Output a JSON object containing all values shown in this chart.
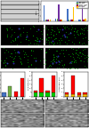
{
  "fig_width": 1.0,
  "fig_height": 1.44,
  "bg_color": "#ffffff",
  "bar_chart_top": {
    "categories": [
      "NTG",
      "CryABR120G",
      "Atg7",
      "CryABR120G\nAtg7"
    ],
    "series": [
      {
        "label": "NTG+Dox",
        "color": "#4472c4",
        "values": [
          2.8,
          0.5,
          2.2,
          0.4
        ]
      },
      {
        "label": "NTG-Dox",
        "color": "#70ad47",
        "values": [
          0.4,
          0.5,
          0.4,
          0.3
        ]
      },
      {
        "label": "R120G+Dox",
        "color": "#7030a0",
        "values": [
          0.3,
          3.0,
          0.3,
          2.8
        ]
      },
      {
        "label": "R120G-Dox",
        "color": "#c00000",
        "values": [
          0.3,
          0.3,
          0.3,
          0.3
        ]
      },
      {
        "label": "Atg7+Dox",
        "color": "#ffc000",
        "values": [
          0.3,
          0.3,
          2.5,
          0.5
        ]
      }
    ],
    "ylabel": "Ratio",
    "ylim": [
      0,
      3.5
    ]
  },
  "bar_chart_g": {
    "categories": [
      "NTG",
      "CryABR120G",
      "Atg7",
      "CryABR120G\nAtg7"
    ],
    "colors": [
      "#4472c4",
      "#70ad47",
      "#ff0000",
      "#ff0000"
    ],
    "values": [
      1.0,
      2.5,
      1.2,
      4.5
    ],
    "ylabel": "GFP dots/cell",
    "ylim": [
      0,
      5
    ]
  },
  "bar_chart_r": {
    "categories": [
      "NTG",
      "CryABR120G",
      "Atg7",
      "CryABR120G\nAtg7"
    ],
    "colors": [
      "#4472c4",
      "#70ad47",
      "#ff0000",
      "#ff0000"
    ],
    "values_green": [
      1.0,
      1.0,
      0.9,
      1.0
    ],
    "values_red": [
      0.5,
      3.5,
      0.5,
      4.2
    ],
    "ylabel": "RFP dots/cell",
    "ylim": [
      0,
      5
    ]
  },
  "bar_chart_flux": {
    "categories": [
      "NTG",
      "CryABR120G",
      "Atg7",
      "CryABR120G\nAtg7"
    ],
    "colors_yellow": [
      "#ffc000",
      "#ffc000",
      "#ffc000",
      "#ffc000"
    ],
    "colors_red": [
      "#ff0000",
      "#ff0000",
      "#ff0000",
      "#ff0000"
    ],
    "values_yellow": [
      0.5,
      0.5,
      0.4,
      0.5
    ],
    "values_red": [
      0.5,
      4.5,
      0.5,
      0.5
    ],
    "ylabel": "Autophagic flux",
    "ylim": [
      0,
      5
    ]
  },
  "fluorescence_colors": {
    "bg": "#000000",
    "dots": "#00ff00",
    "blue": "#0000ff"
  },
  "em_bg": "#888888"
}
